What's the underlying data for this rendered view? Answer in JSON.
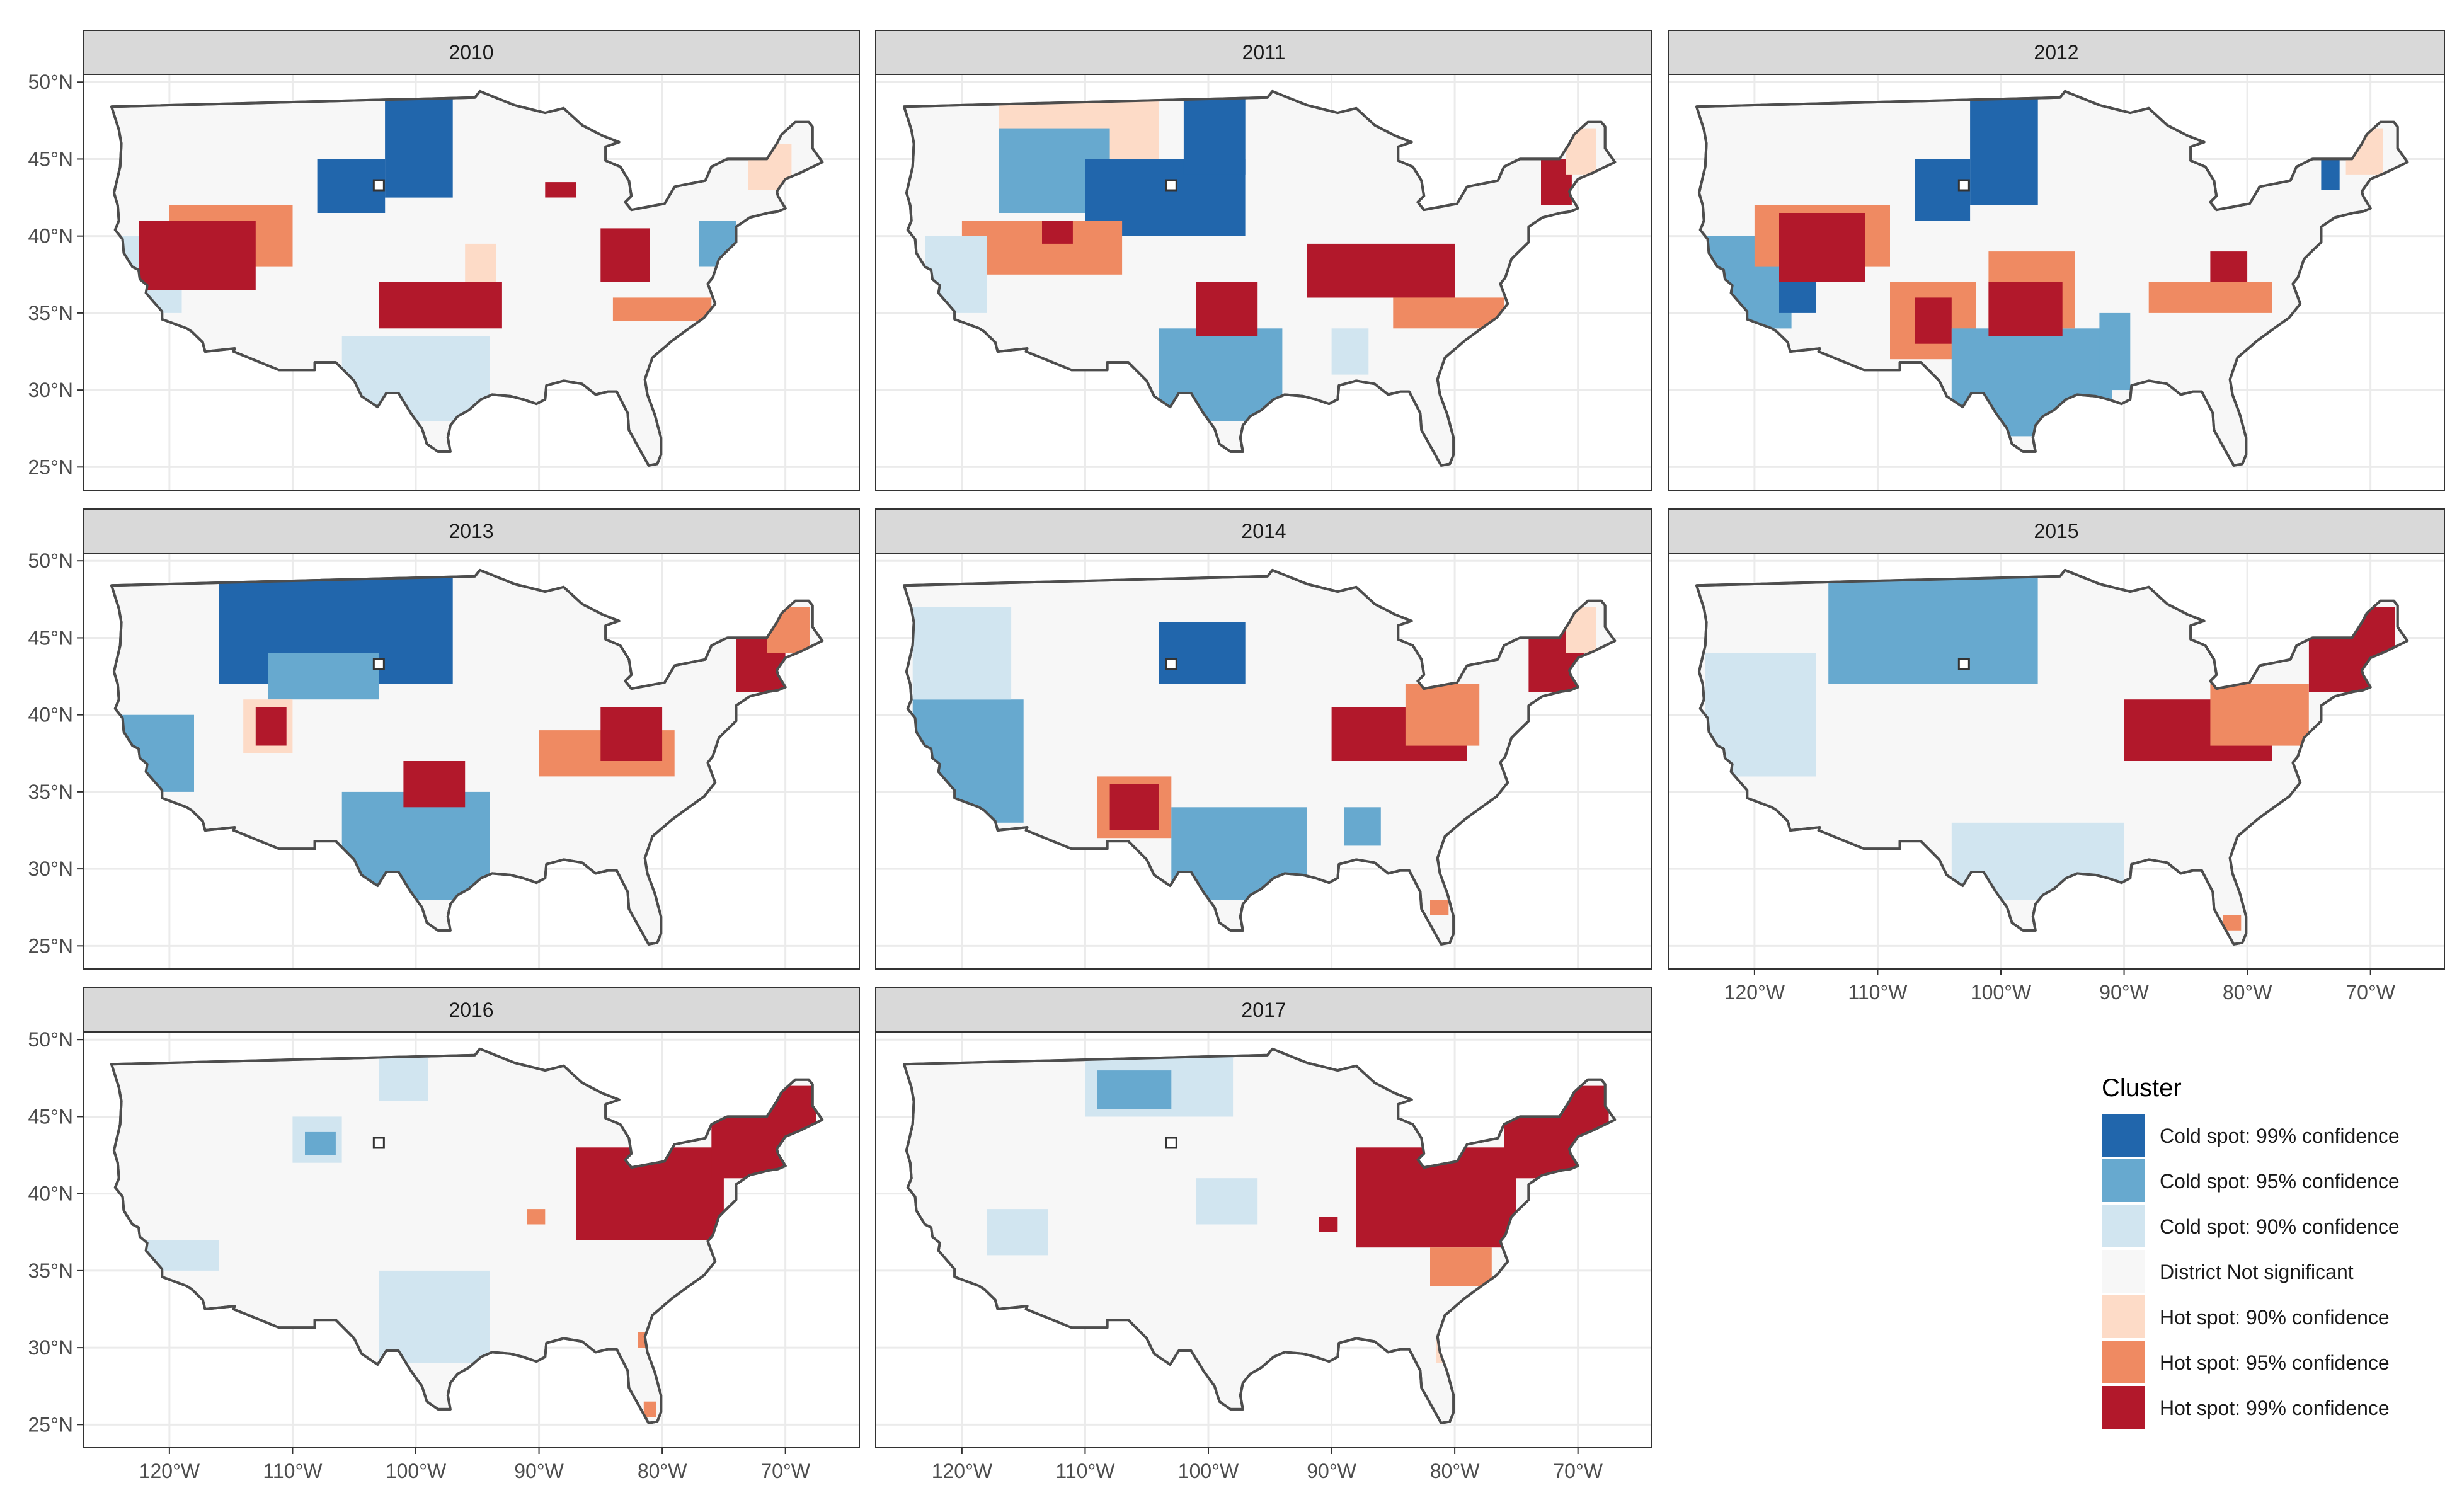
{
  "map": {
    "type": "faceted choropleth map",
    "region": "Contiguous United States",
    "projection": "longitude-latitude",
    "lon_range": [
      -127,
      -64
    ],
    "lat_range": [
      23.5,
      50.5
    ],
    "lat_ticks": [
      {
        "value": 50,
        "label": "50°N"
      },
      {
        "value": 45,
        "label": "45°N"
      },
      {
        "value": 40,
        "label": "40°N"
      },
      {
        "value": 35,
        "label": "35°N"
      },
      {
        "value": 30,
        "label": "30°N"
      },
      {
        "value": 25,
        "label": "25°N"
      }
    ],
    "lon_ticks": [
      {
        "value": -120,
        "label": "120°W"
      },
      {
        "value": -110,
        "label": "110°W"
      },
      {
        "value": -100,
        "label": "100°W"
      },
      {
        "value": -90,
        "label": "90°W"
      },
      {
        "value": -80,
        "label": "80°W"
      },
      {
        "value": -70,
        "label": "70°W"
      }
    ],
    "grid": true,
    "colors": {
      "strip_bg": "#d9d9d9",
      "land": "#f7f7f7",
      "outline": "#4d4d4d",
      "gridline": "#ebebeb",
      "marker_fill": "#ffffff"
    }
  },
  "legend": {
    "title": "Cluster",
    "position": "right-bottom",
    "items": [
      {
        "key": "c99",
        "label": "Cold spot: 99% confidence",
        "color": "#2166ac"
      },
      {
        "key": "c95",
        "label": "Cold spot: 95% confidence",
        "color": "#67a9cf"
      },
      {
        "key": "c90",
        "label": "Cold spot: 90% confidence",
        "color": "#d1e5f0"
      },
      {
        "key": "ns",
        "label": "District Not significant",
        "color": "#f7f7f7"
      },
      {
        "key": "h90",
        "label": "Hot spot: 90% confidence",
        "color": "#fddbc7"
      },
      {
        "key": "h95",
        "label": "Hot spot: 95% confidence",
        "color": "#ef8a62"
      },
      {
        "key": "h99",
        "label": "Hot spot: 99% confidence",
        "color": "#b2182b"
      }
    ]
  },
  "marker": {
    "lon": -103,
    "lat": 43.3,
    "description": "small hollow square"
  },
  "panels": [
    {
      "year": "2010",
      "clusters": [
        {
          "class": "c99",
          "lon": [
            -108,
            -102.5
          ],
          "lat": [
            41.5,
            45
          ]
        },
        {
          "class": "c99",
          "lon": [
            -102.5,
            -97
          ],
          "lat": [
            42.5,
            49
          ]
        },
        {
          "class": "c90",
          "lon": [
            -106,
            -94
          ],
          "lat": [
            28,
            33.5
          ]
        },
        {
          "class": "c90",
          "lon": [
            -124,
            -119
          ],
          "lat": [
            35,
            40
          ]
        },
        {
          "class": "c95",
          "lon": [
            -77,
            -74
          ],
          "lat": [
            38,
            41
          ]
        },
        {
          "class": "h90",
          "lon": [
            -96,
            -93.5
          ],
          "lat": [
            36,
            39.5
          ]
        },
        {
          "class": "h95",
          "lon": [
            -120,
            -110
          ],
          "lat": [
            38,
            42
          ]
        },
        {
          "class": "h99",
          "lon": [
            -122.5,
            -113
          ],
          "lat": [
            36.5,
            41
          ]
        },
        {
          "class": "h99",
          "lon": [
            -103,
            -93
          ],
          "lat": [
            34,
            37
          ]
        },
        {
          "class": "h99",
          "lon": [
            -85,
            -81
          ],
          "lat": [
            37,
            40.5
          ]
        },
        {
          "class": "h99",
          "lon": [
            -89.5,
            -87
          ],
          "lat": [
            42.5,
            43.5
          ]
        },
        {
          "class": "h95",
          "lon": [
            -84,
            -76
          ],
          "lat": [
            34.5,
            36
          ]
        },
        {
          "class": "h90",
          "lon": [
            -73,
            -69.5
          ],
          "lat": [
            43,
            46
          ]
        }
      ]
    },
    {
      "year": "2011",
      "clusters": [
        {
          "class": "h90",
          "lon": [
            -117,
            -104
          ],
          "lat": [
            45,
            49
          ]
        },
        {
          "class": "c95",
          "lon": [
            -117,
            -108
          ],
          "lat": [
            41.5,
            47
          ]
        },
        {
          "class": "c99",
          "lon": [
            -110,
            -97
          ],
          "lat": [
            40,
            45
          ]
        },
        {
          "class": "c99",
          "lon": [
            -102,
            -97
          ],
          "lat": [
            44,
            49
          ]
        },
        {
          "class": "h95",
          "lon": [
            -120,
            -107
          ],
          "lat": [
            37.5,
            41
          ]
        },
        {
          "class": "h99",
          "lon": [
            -113.5,
            -111
          ],
          "lat": [
            39.5,
            41
          ]
        },
        {
          "class": "c95",
          "lon": [
            -104,
            -94
          ],
          "lat": [
            28,
            34
          ]
        },
        {
          "class": "h99",
          "lon": [
            -101,
            -96
          ],
          "lat": [
            33.5,
            37
          ]
        },
        {
          "class": "c90",
          "lon": [
            -123,
            -118
          ],
          "lat": [
            35,
            40
          ]
        },
        {
          "class": "h99",
          "lon": [
            -92,
            -80
          ],
          "lat": [
            36,
            39.5
          ]
        },
        {
          "class": "h95",
          "lon": [
            -85,
            -76
          ],
          "lat": [
            34,
            36
          ]
        },
        {
          "class": "c90",
          "lon": [
            -90,
            -87
          ],
          "lat": [
            31,
            34
          ]
        },
        {
          "class": "h99",
          "lon": [
            -73,
            -70.5
          ],
          "lat": [
            42,
            45
          ]
        },
        {
          "class": "h90",
          "lon": [
            -71,
            -68.5
          ],
          "lat": [
            44,
            47
          ]
        }
      ]
    },
    {
      "year": "2012",
      "clusters": [
        {
          "class": "c99",
          "lon": [
            -107,
            -102.5
          ],
          "lat": [
            41,
            45
          ]
        },
        {
          "class": "c99",
          "lon": [
            -102.5,
            -97
          ],
          "lat": [
            42,
            49
          ]
        },
        {
          "class": "c95",
          "lon": [
            -124,
            -117
          ],
          "lat": [
            34,
            40
          ]
        },
        {
          "class": "c99",
          "lon": [
            -118,
            -115
          ],
          "lat": [
            35,
            37
          ]
        },
        {
          "class": "h95",
          "lon": [
            -120,
            -109
          ],
          "lat": [
            38,
            42
          ]
        },
        {
          "class": "h99",
          "lon": [
            -118,
            -111
          ],
          "lat": [
            37,
            41.5
          ]
        },
        {
          "class": "h95",
          "lon": [
            -109,
            -102
          ],
          "lat": [
            32,
            37
          ]
        },
        {
          "class": "h99",
          "lon": [
            -107,
            -104
          ],
          "lat": [
            33,
            36
          ]
        },
        {
          "class": "c95",
          "lon": [
            -104,
            -91
          ],
          "lat": [
            27,
            34
          ]
        },
        {
          "class": "h95",
          "lon": [
            -101,
            -94
          ],
          "lat": [
            34,
            39
          ]
        },
        {
          "class": "h99",
          "lon": [
            -101,
            -95
          ],
          "lat": [
            33.5,
            37
          ]
        },
        {
          "class": "c95",
          "lon": [
            -92,
            -89.5
          ],
          "lat": [
            30,
            35
          ]
        },
        {
          "class": "h99",
          "lon": [
            -83,
            -80
          ],
          "lat": [
            36.5,
            39
          ]
        },
        {
          "class": "h95",
          "lon": [
            -88,
            -78
          ],
          "lat": [
            35,
            37
          ]
        },
        {
          "class": "c99",
          "lon": [
            -74,
            -72.5
          ],
          "lat": [
            43,
            45
          ]
        },
        {
          "class": "h90",
          "lon": [
            -72,
            -69
          ],
          "lat": [
            44,
            47
          ]
        }
      ]
    },
    {
      "year": "2013",
      "clusters": [
        {
          "class": "c99",
          "lon": [
            -116,
            -97
          ],
          "lat": [
            42,
            49
          ]
        },
        {
          "class": "c95",
          "lon": [
            -112,
            -103
          ],
          "lat": [
            41,
            44
          ]
        },
        {
          "class": "c95",
          "lon": [
            -124,
            -118
          ],
          "lat": [
            35,
            40
          ]
        },
        {
          "class": "h90",
          "lon": [
            -114,
            -110
          ],
          "lat": [
            37.5,
            41
          ]
        },
        {
          "class": "h99",
          "lon": [
            -113,
            -110.5
          ],
          "lat": [
            38,
            40.5
          ]
        },
        {
          "class": "c95",
          "lon": [
            -106,
            -94
          ],
          "lat": [
            28,
            35
          ]
        },
        {
          "class": "h99",
          "lon": [
            -101,
            -96
          ],
          "lat": [
            34,
            37
          ]
        },
        {
          "class": "h95",
          "lon": [
            -90,
            -79
          ],
          "lat": [
            36,
            39
          ]
        },
        {
          "class": "h99",
          "lon": [
            -85,
            -80
          ],
          "lat": [
            37,
            40.5
          ]
        },
        {
          "class": "h99",
          "lon": [
            -74,
            -70
          ],
          "lat": [
            41.5,
            45
          ]
        },
        {
          "class": "h95",
          "lon": [
            -71.5,
            -68
          ],
          "lat": [
            44,
            47
          ]
        }
      ]
    },
    {
      "year": "2014",
      "clusters": [
        {
          "class": "c99",
          "lon": [
            -104,
            -97
          ],
          "lat": [
            42,
            46
          ]
        },
        {
          "class": "c95",
          "lon": [
            -124,
            -115
          ],
          "lat": [
            33,
            41
          ]
        },
        {
          "class": "c90",
          "lon": [
            -124,
            -116
          ],
          "lat": [
            41,
            47
          ]
        },
        {
          "class": "h95",
          "lon": [
            -109,
            -103
          ],
          "lat": [
            32,
            36
          ]
        },
        {
          "class": "h99",
          "lon": [
            -108,
            -104
          ],
          "lat": [
            32.5,
            35.5
          ]
        },
        {
          "class": "c95",
          "lon": [
            -103,
            -92
          ],
          "lat": [
            28,
            34
          ]
        },
        {
          "class": "c95",
          "lon": [
            -89,
            -86
          ],
          "lat": [
            31.5,
            34
          ]
        },
        {
          "class": "h99",
          "lon": [
            -90,
            -79
          ],
          "lat": [
            37,
            40.5
          ]
        },
        {
          "class": "h95",
          "lon": [
            -84,
            -78
          ],
          "lat": [
            38,
            42
          ]
        },
        {
          "class": "h99",
          "lon": [
            -74,
            -69.5
          ],
          "lat": [
            41.5,
            46
          ]
        },
        {
          "class": "h90",
          "lon": [
            -71,
            -68.5
          ],
          "lat": [
            44,
            47
          ]
        },
        {
          "class": "h95",
          "lon": [
            -82,
            -80.5
          ],
          "lat": [
            27,
            28
          ]
        }
      ]
    },
    {
      "year": "2015",
      "clusters": [
        {
          "class": "c95",
          "lon": [
            -114,
            -97
          ],
          "lat": [
            42,
            49
          ]
        },
        {
          "class": "c90",
          "lon": [
            -124,
            -115
          ],
          "lat": [
            36,
            44
          ]
        },
        {
          "class": "c90",
          "lon": [
            -104,
            -90
          ],
          "lat": [
            28,
            33
          ]
        },
        {
          "class": "h99",
          "lon": [
            -90,
            -78
          ],
          "lat": [
            37,
            41
          ]
        },
        {
          "class": "h95",
          "lon": [
            -83,
            -75
          ],
          "lat": [
            38,
            42
          ]
        },
        {
          "class": "h99",
          "lon": [
            -75,
            -68
          ],
          "lat": [
            41.5,
            47
          ]
        },
        {
          "class": "h95",
          "lon": [
            -82,
            -80.5
          ],
          "lat": [
            26,
            27
          ]
        }
      ]
    },
    {
      "year": "2016",
      "clusters": [
        {
          "class": "c90",
          "lon": [
            -110,
            -106
          ],
          "lat": [
            42,
            45
          ]
        },
        {
          "class": "c95",
          "lon": [
            -109,
            -106.5
          ],
          "lat": [
            42.5,
            44
          ]
        },
        {
          "class": "c90",
          "lon": [
            -103,
            -99
          ],
          "lat": [
            46,
            49
          ]
        },
        {
          "class": "c90",
          "lon": [
            -122,
            -116
          ],
          "lat": [
            35,
            37
          ]
        },
        {
          "class": "c90",
          "lon": [
            -103,
            -94
          ],
          "lat": [
            29,
            35
          ]
        },
        {
          "class": "h99",
          "lon": [
            -87,
            -75
          ],
          "lat": [
            37,
            43
          ]
        },
        {
          "class": "h99",
          "lon": [
            -76,
            -67.5
          ],
          "lat": [
            41,
            47
          ]
        },
        {
          "class": "h95",
          "lon": [
            -91,
            -89.5
          ],
          "lat": [
            38,
            39
          ]
        },
        {
          "class": "h95",
          "lon": [
            -82,
            -80.5
          ],
          "lat": [
            30,
            31
          ]
        },
        {
          "class": "h95",
          "lon": [
            -81.5,
            -80.5
          ],
          "lat": [
            25.5,
            26.5
          ]
        }
      ]
    },
    {
      "year": "2017",
      "clusters": [
        {
          "class": "c90",
          "lon": [
            -110,
            -98
          ],
          "lat": [
            45,
            49
          ]
        },
        {
          "class": "c95",
          "lon": [
            -109,
            -103
          ],
          "lat": [
            45.5,
            48
          ]
        },
        {
          "class": "c90",
          "lon": [
            -118,
            -113
          ],
          "lat": [
            36,
            39
          ]
        },
        {
          "class": "c90",
          "lon": [
            -101,
            -96
          ],
          "lat": [
            38,
            41
          ]
        },
        {
          "class": "h99",
          "lon": [
            -88,
            -75
          ],
          "lat": [
            36.5,
            43
          ]
        },
        {
          "class": "h99",
          "lon": [
            -76,
            -67.5
          ],
          "lat": [
            41,
            47
          ]
        },
        {
          "class": "h95",
          "lon": [
            -82,
            -77
          ],
          "lat": [
            34,
            36.5
          ]
        },
        {
          "class": "h99",
          "lon": [
            -91,
            -89.5
          ],
          "lat": [
            37.5,
            38.5
          ]
        },
        {
          "class": "h90",
          "lon": [
            -81.5,
            -80
          ],
          "lat": [
            29,
            30.5
          ]
        }
      ]
    }
  ]
}
